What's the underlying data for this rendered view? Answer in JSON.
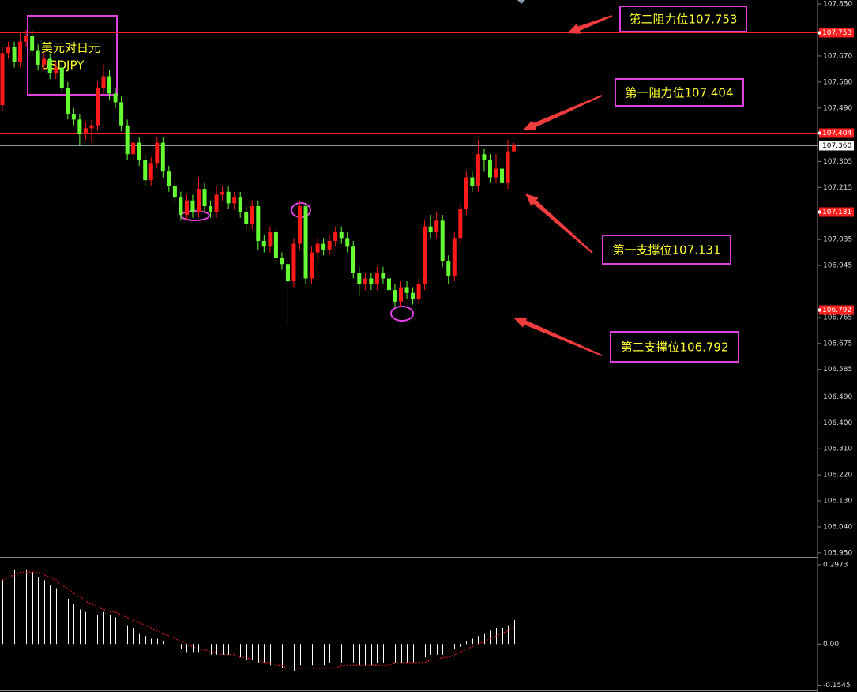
{
  "chart_data": [
    {
      "type": "candlestick",
      "title": "美元对日元",
      "subtitle": "USDJPY",
      "open": [
        107.5,
        107.68,
        107.7,
        107.65,
        107.72,
        107.74,
        107.69,
        107.64,
        107.66,
        107.61,
        107.63,
        107.56,
        107.47,
        107.45,
        107.4,
        107.42,
        107.43,
        107.56,
        107.6,
        107.54,
        107.51,
        107.43,
        107.33,
        107.37,
        107.31,
        107.24,
        107.3,
        107.37,
        107.27,
        107.22,
        107.18,
        107.12,
        107.17,
        107.13,
        107.21,
        107.15,
        107.13,
        107.19,
        107.2,
        107.16,
        107.18,
        107.13,
        107.09,
        107.15,
        107.03,
        107.01,
        107.06,
        106.97,
        106.95,
        106.89,
        107.02,
        107.15,
        106.9,
        106.99,
        107.02,
        107.0,
        107.03,
        107.06,
        107.04,
        107.01,
        106.92,
        106.88,
        106.9,
        106.88,
        106.92,
        106.9,
        106.86,
        106.82,
        106.87,
        106.85,
        106.83,
        106.88,
        107.08,
        107.06,
        107.1,
        106.96,
        106.91,
        107.04,
        107.14,
        107.25,
        107.22,
        107.33,
        107.31,
        107.25,
        107.28,
        107.23,
        107.34
      ],
      "high": [
        107.7,
        107.72,
        107.72,
        107.75,
        107.76,
        107.76,
        107.71,
        107.68,
        107.68,
        107.65,
        107.65,
        107.58,
        107.49,
        107.47,
        107.44,
        107.45,
        107.58,
        107.64,
        107.62,
        107.56,
        107.53,
        107.45,
        107.39,
        107.39,
        107.33,
        107.32,
        107.39,
        107.39,
        107.29,
        107.24,
        107.2,
        107.19,
        107.19,
        107.25,
        107.23,
        107.17,
        107.22,
        107.22,
        107.22,
        107.2,
        107.2,
        107.15,
        107.17,
        107.17,
        107.05,
        107.08,
        107.08,
        106.99,
        106.97,
        107.04,
        107.17,
        107.16,
        107.01,
        107.04,
        107.04,
        107.05,
        107.08,
        107.08,
        107.06,
        107.03,
        106.94,
        106.92,
        106.92,
        106.94,
        106.94,
        106.92,
        106.88,
        106.89,
        106.89,
        106.87,
        106.9,
        107.1,
        107.12,
        107.13,
        107.12,
        106.98,
        107.06,
        107.16,
        107.27,
        107.27,
        107.38,
        107.35,
        107.33,
        107.33,
        107.3,
        107.38,
        107.37
      ],
      "low": [
        107.48,
        107.66,
        107.63,
        107.63,
        107.7,
        107.67,
        107.62,
        107.62,
        107.59,
        107.59,
        107.54,
        107.45,
        107.43,
        107.36,
        107.38,
        107.37,
        107.41,
        107.54,
        107.52,
        107.49,
        107.41,
        107.31,
        107.31,
        107.29,
        107.22,
        107.22,
        107.28,
        107.25,
        107.2,
        107.16,
        107.1,
        107.1,
        107.11,
        107.11,
        107.13,
        107.11,
        107.11,
        107.17,
        107.14,
        107.14,
        107.11,
        107.07,
        107.07,
        107.0,
        106.99,
        106.99,
        106.95,
        106.93,
        106.74,
        106.87,
        107.0,
        106.88,
        106.88,
        106.97,
        106.98,
        106.98,
        107.01,
        107.02,
        106.99,
        106.9,
        106.84,
        106.86,
        106.86,
        106.86,
        106.88,
        106.84,
        106.8,
        106.8,
        106.83,
        106.81,
        106.81,
        106.86,
        107.04,
        107.04,
        106.94,
        106.88,
        106.89,
        107.02,
        107.12,
        107.2,
        107.2,
        107.27,
        107.23,
        107.23,
        107.21,
        107.21,
        107.34
      ],
      "close": [
        107.68,
        107.7,
        107.65,
        107.72,
        107.74,
        107.69,
        107.64,
        107.66,
        107.61,
        107.63,
        107.56,
        107.47,
        107.45,
        107.4,
        107.42,
        107.43,
        107.56,
        107.6,
        107.54,
        107.51,
        107.43,
        107.33,
        107.37,
        107.31,
        107.24,
        107.3,
        107.37,
        107.27,
        107.22,
        107.18,
        107.12,
        107.17,
        107.13,
        107.21,
        107.15,
        107.13,
        107.19,
        107.2,
        107.16,
        107.18,
        107.13,
        107.09,
        107.15,
        107.03,
        107.01,
        107.06,
        106.97,
        106.95,
        106.89,
        107.02,
        107.15,
        106.9,
        106.99,
        107.02,
        107.0,
        107.03,
        107.06,
        107.04,
        107.01,
        106.92,
        106.88,
        106.9,
        106.88,
        106.92,
        106.9,
        106.86,
        106.82,
        106.87,
        106.85,
        106.83,
        106.88,
        107.08,
        107.06,
        107.1,
        106.96,
        106.91,
        107.04,
        107.14,
        107.25,
        107.22,
        107.33,
        107.31,
        107.25,
        107.28,
        107.23,
        107.34,
        107.36
      ],
      "up_color": "#ff1a1a",
      "down_color": "#66ff33",
      "ylim": [
        105.936,
        107.864
      ],
      "yticks": [
        {
          "value": 107.85,
          "label": "107.850"
        },
        {
          "value": 107.67,
          "label": "107.670"
        },
        {
          "value": 107.58,
          "label": "107.580"
        },
        {
          "value": 107.49,
          "label": "107.490"
        },
        107.305,
        107.215,
        107.035,
        106.945,
        106.765,
        106.675,
        106.585,
        {
          "value": 106.49,
          "label": "106.490"
        },
        {
          "value": 106.4,
          "label": "106.400"
        },
        {
          "value": 106.31,
          "label": "106.310"
        },
        {
          "value": 106.22,
          "label": "106.220"
        },
        {
          "value": 106.13,
          "label": "106.130"
        },
        {
          "value": 106.04,
          "label": "106.040"
        },
        {
          "value": 105.95,
          "label": "105.950"
        }
      ],
      "levels": [
        107.753,
        107.404,
        107.131,
        106.792
      ],
      "level_color": "#ff2020",
      "current": {
        "value": 107.36,
        "label": "107.360"
      },
      "annotations": [
        "第二阻力位107.753",
        "第一阻力位107.404",
        "第一支撑位107.131",
        "第二支撑位106.792"
      ]
    },
    {
      "type": "macd",
      "histogram": [
        0.24,
        0.26,
        0.28,
        0.29,
        0.28,
        0.27,
        0.25,
        0.24,
        0.22,
        0.21,
        0.19,
        0.17,
        0.15,
        0.13,
        0.12,
        0.11,
        0.11,
        0.12,
        0.11,
        0.1,
        0.09,
        0.07,
        0.06,
        0.04,
        0.03,
        0.02,
        0.02,
        0.01,
        0.0,
        -0.01,
        -0.02,
        -0.03,
        -0.03,
        -0.03,
        -0.03,
        -0.04,
        -0.04,
        -0.04,
        -0.04,
        -0.04,
        -0.05,
        -0.06,
        -0.06,
        -0.07,
        -0.07,
        -0.08,
        -0.08,
        -0.09,
        -0.1,
        -0.1,
        -0.08,
        -0.09,
        -0.08,
        -0.08,
        -0.08,
        -0.07,
        -0.07,
        -0.07,
        -0.07,
        -0.07,
        -0.08,
        -0.08,
        -0.08,
        -0.07,
        -0.07,
        -0.07,
        -0.07,
        -0.07,
        -0.07,
        -0.07,
        -0.06,
        -0.05,
        -0.04,
        -0.04,
        -0.04,
        -0.03,
        -0.02,
        -0.01,
        0.01,
        0.02,
        0.03,
        0.04,
        0.05,
        0.06,
        0.06,
        0.07,
        0.09
      ],
      "signal": [
        0.24,
        0.25,
        0.26,
        0.27,
        0.27,
        0.27,
        0.27,
        0.26,
        0.25,
        0.24,
        0.22,
        0.21,
        0.19,
        0.18,
        0.16,
        0.15,
        0.14,
        0.13,
        0.12,
        0.12,
        0.11,
        0.1,
        0.09,
        0.08,
        0.07,
        0.06,
        0.05,
        0.04,
        0.03,
        0.02,
        0.01,
        0.0,
        -0.01,
        -0.02,
        -0.02,
        -0.03,
        -0.03,
        -0.04,
        -0.04,
        -0.04,
        -0.05,
        -0.05,
        -0.06,
        -0.06,
        -0.07,
        -0.07,
        -0.08,
        -0.08,
        -0.09,
        -0.09,
        -0.09,
        -0.09,
        -0.09,
        -0.09,
        -0.09,
        -0.09,
        -0.09,
        -0.08,
        -0.08,
        -0.08,
        -0.08,
        -0.08,
        -0.08,
        -0.08,
        -0.08,
        -0.08,
        -0.07,
        -0.07,
        -0.07,
        -0.07,
        -0.07,
        -0.07,
        -0.06,
        -0.06,
        -0.05,
        -0.05,
        -0.04,
        -0.03,
        -0.02,
        -0.01,
        0.0,
        0.01,
        0.02,
        0.03,
        0.04,
        0.05,
        0.06
      ],
      "histogram_color": "#ffffff",
      "signal_color": "#ff2020",
      "ylim": [
        -0.174,
        0.321
      ],
      "yticks": [
        0.2973,
        {
          "value": 0,
          "label": "0.00"
        },
        -0.1545
      ]
    }
  ]
}
